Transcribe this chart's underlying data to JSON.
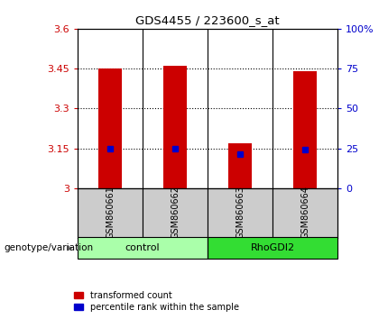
{
  "title": "GDS4455 / 223600_s_at",
  "samples": [
    "GSM860661",
    "GSM860662",
    "GSM860663",
    "GSM860664"
  ],
  "red_values": [
    3.45,
    3.462,
    3.17,
    3.44
  ],
  "blue_values": [
    3.148,
    3.148,
    3.128,
    3.145
  ],
  "ymin": 3.0,
  "ymax": 3.6,
  "yticks_left": [
    3.0,
    3.15,
    3.3,
    3.45,
    3.6
  ],
  "yticks_left_labels": [
    "3",
    "3.15",
    "3.3",
    "3.45",
    "3.6"
  ],
  "yticks_right": [
    0,
    25,
    50,
    75,
    100
  ],
  "yticks_right_labels": [
    "0",
    "25",
    "50",
    "75",
    "100%"
  ],
  "gridlines": [
    3.15,
    3.3,
    3.45
  ],
  "groups": [
    {
      "label": "control",
      "samples": [
        0,
        1
      ],
      "color": "#aaffaa"
    },
    {
      "label": "RhoGDI2",
      "samples": [
        2,
        3
      ],
      "color": "#33dd33"
    }
  ],
  "bar_color": "#CC0000",
  "blue_color": "#0000CC",
  "sample_box_color": "#CCCCCC",
  "bar_width": 0.35,
  "legend_red": "transformed count",
  "legend_blue": "percentile rank within the sample",
  "genotype_label": "genotype/variation"
}
